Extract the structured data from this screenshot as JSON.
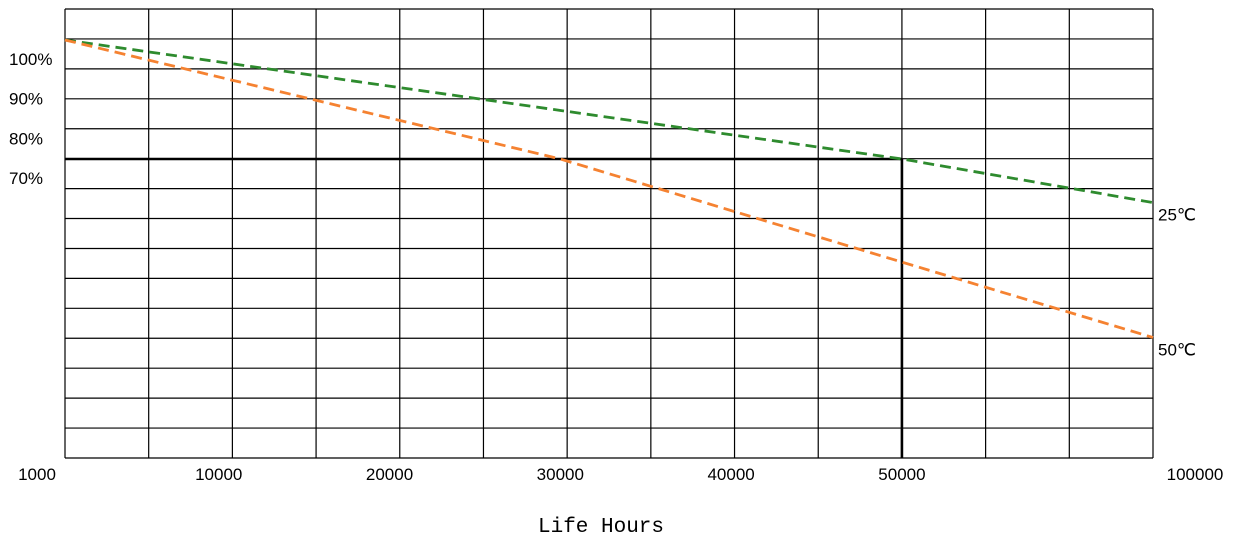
{
  "chart_data": {
    "type": "line",
    "title": "",
    "xlabel": "Life Hours",
    "ylabel": "",
    "x_ticks": [
      1000,
      10000,
      20000,
      30000,
      40000,
      50000,
      100000
    ],
    "x_tick_labels": [
      "1000",
      "10000",
      "20000",
      "30000",
      "40000",
      "50000",
      "100000"
    ],
    "x_scale": "piecewise: 1000 to 50000 linear, 50000 to 100000 compressed into last three columns",
    "y_ticks": [
      100,
      90,
      80,
      70
    ],
    "y_tick_labels": [
      "100%",
      "90%",
      "80%",
      "70%"
    ],
    "y_unit": "%",
    "ylim": [
      -30,
      110
    ],
    "grid": true,
    "series": [
      {
        "name": "25℃",
        "color": "#2e8b2e",
        "style": "dashed",
        "points": [
          {
            "x": 1000,
            "y": 100
          },
          {
            "x": 50000,
            "y": 70
          },
          {
            "x": 100000,
            "y": 59
          }
        ]
      },
      {
        "name": "50℃",
        "color": "#f58231",
        "style": "dashed",
        "points": [
          {
            "x": 1000,
            "y": 100
          },
          {
            "x": 30000,
            "y": 70
          },
          {
            "x": 50000,
            "y": 44
          },
          {
            "x": 100000,
            "y": 25
          }
        ]
      }
    ],
    "reference_lines": [
      {
        "type": "horizontal",
        "y": 70,
        "x_from": 1000,
        "x_to": 50000
      },
      {
        "type": "vertical",
        "x": 50000,
        "y_from": 70
      }
    ],
    "legend": "series labels at right end of lines"
  }
}
